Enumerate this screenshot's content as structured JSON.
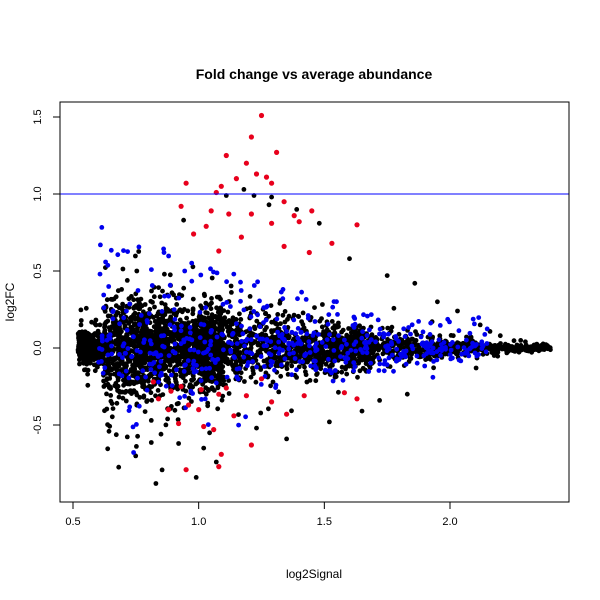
{
  "chart_data": {
    "type": "scatter",
    "title": "Fold change vs average abundance",
    "xlabel": "log2Signal",
    "ylabel": "log2FC",
    "xlim": [
      0.5,
      2.5
    ],
    "ylim": [
      -1.0,
      1.6
    ],
    "x_ticks": [
      0.5,
      1.0,
      1.5,
      2.0
    ],
    "y_ticks": [
      -0.5,
      0.0,
      0.5,
      1.0,
      1.5
    ],
    "x_tick_labels": [
      "0.5",
      "1.0",
      "1.5",
      "2.0"
    ],
    "y_tick_labels": [
      "-0.5",
      "0.0",
      "0.5",
      "1.0",
      "1.5"
    ],
    "reference_line": {
      "y": 1.0,
      "color": "#0000ff"
    },
    "grid": false,
    "colors": {
      "black": "#000000",
      "blue": "#0000ee",
      "red": "#e8001c"
    },
    "red_points": [
      [
        1.25,
        1.51
      ],
      [
        1.21,
        1.37
      ],
      [
        1.31,
        1.27
      ],
      [
        1.11,
        1.25
      ],
      [
        1.19,
        1.2
      ],
      [
        1.23,
        1.13
      ],
      [
        1.15,
        1.1
      ],
      [
        1.29,
        1.07
      ],
      [
        1.09,
        1.05
      ],
      [
        1.27,
        1.11
      ],
      [
        0.95,
        1.07
      ],
      [
        1.07,
        1.01
      ],
      [
        1.34,
        0.95
      ],
      [
        1.45,
        0.89
      ],
      [
        1.63,
        0.8
      ],
      [
        0.93,
        0.92
      ],
      [
        1.05,
        0.89
      ],
      [
        1.12,
        0.87
      ],
      [
        1.21,
        0.87
      ],
      [
        1.29,
        0.81
      ],
      [
        1.38,
        0.86
      ],
      [
        1.4,
        0.82
      ],
      [
        1.03,
        0.79
      ],
      [
        0.98,
        0.74
      ],
      [
        1.17,
        0.72
      ],
      [
        1.34,
        0.66
      ],
      [
        1.53,
        0.68
      ],
      [
        1.08,
        0.63
      ],
      [
        1.44,
        0.62
      ],
      [
        0.89,
        -0.28
      ],
      [
        0.93,
        -0.25
      ],
      [
        1.01,
        -0.27
      ],
      [
        0.84,
        -0.33
      ],
      [
        0.96,
        -0.37
      ],
      [
        1.08,
        -0.3
      ],
      [
        1.19,
        -0.31
      ],
      [
        1.14,
        -0.44
      ],
      [
        1.02,
        -0.51
      ],
      [
        1.06,
        -0.53
      ],
      [
        0.88,
        -0.4
      ],
      [
        1.29,
        -0.35
      ],
      [
        1.35,
        -0.43
      ],
      [
        1.58,
        -0.29
      ],
      [
        1.63,
        -0.33
      ],
      [
        1.21,
        -0.63
      ],
      [
        1.09,
        -0.69
      ],
      [
        0.95,
        -0.79
      ],
      [
        1.08,
        -0.77
      ],
      [
        0.82,
        -0.22
      ],
      [
        1.25,
        -0.2
      ],
      [
        1.0,
        -0.4
      ],
      [
        1.42,
        -0.31
      ],
      [
        0.92,
        -0.49
      ],
      [
        1.11,
        -0.26
      ]
    ],
    "black_outliers": [
      [
        0.83,
        -0.88
      ],
      [
        0.99,
        -0.84
      ],
      [
        1.07,
        -0.74
      ],
      [
        1.35,
        -0.59
      ],
      [
        1.02,
        -0.65
      ],
      [
        1.29,
        0.98
      ],
      [
        1.22,
        0.99
      ],
      [
        1.28,
        0.93
      ],
      [
        1.39,
        0.9
      ],
      [
        1.48,
        0.81
      ],
      [
        0.94,
        0.83
      ],
      [
        1.11,
        0.99
      ],
      [
        1.18,
        1.03
      ],
      [
        1.6,
        0.58
      ],
      [
        1.75,
        0.47
      ],
      [
        1.86,
        0.42
      ],
      [
        1.95,
        0.3
      ],
      [
        2.03,
        0.24
      ],
      [
        1.72,
        -0.34
      ],
      [
        1.83,
        -0.3
      ],
      [
        1.65,
        -0.41
      ],
      [
        1.52,
        -0.48
      ],
      [
        0.85,
        -0.56
      ],
      [
        0.92,
        -0.62
      ],
      [
        1.23,
        -0.52
      ],
      [
        2.12,
        0.15
      ],
      [
        2.2,
        0.08
      ],
      [
        2.3,
        0.04
      ],
      [
        2.37,
        0.01
      ]
    ]
  }
}
